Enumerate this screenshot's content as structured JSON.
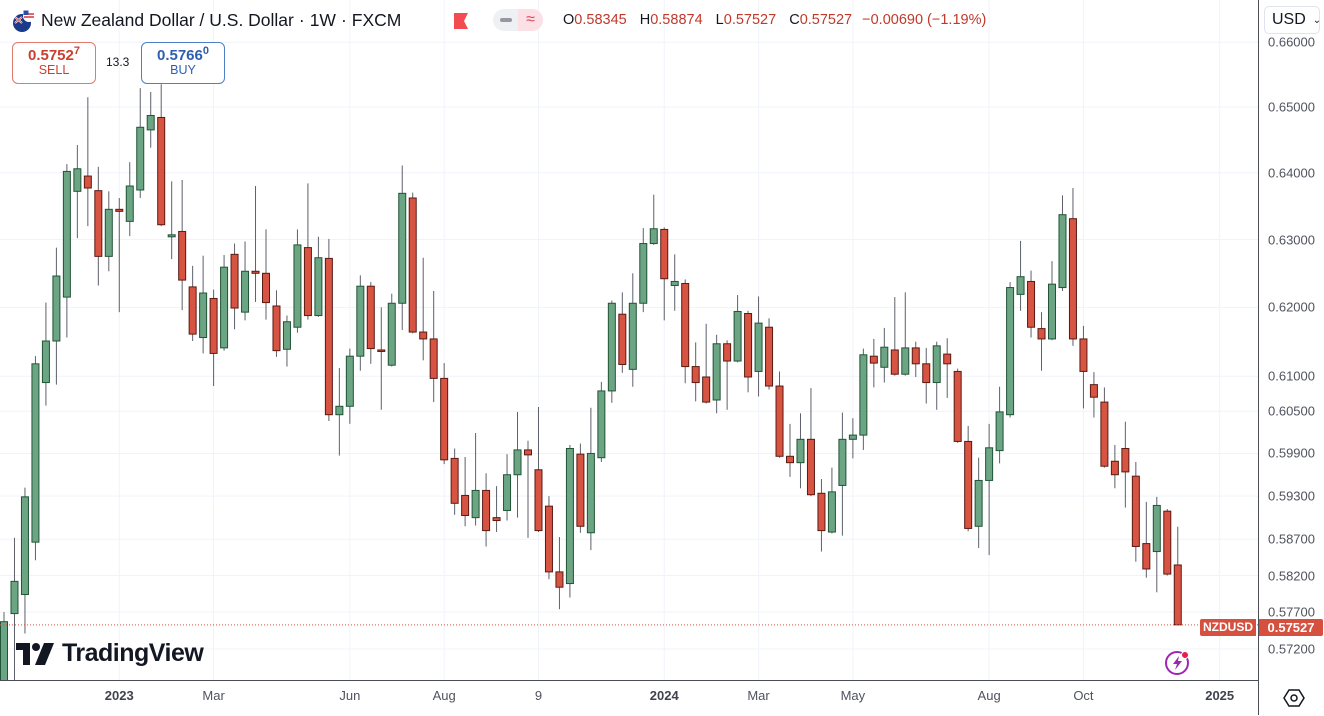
{
  "header": {
    "symbol_name": "New Zealand Dollar / U.S. Dollar",
    "interval": "1W",
    "exchange": "FXCM",
    "ohlc": {
      "o_label": "O",
      "o": "0.58345",
      "h_label": "H",
      "h": "0.58874",
      "l_label": "L",
      "l": "0.57527",
      "c_label": "C",
      "c": "0.57527",
      "change": "−0.00690 (−1.19%)"
    },
    "icons": {
      "flag": "nz-flag-icon",
      "alert": "red-flag-icon",
      "pill_left": "minus-icon",
      "pill_right": "approx-wave-icon"
    }
  },
  "trade": {
    "sell_price_main": "0.5752",
    "sell_price_pip": "7",
    "sell_label": "SELL",
    "spread": "13.3",
    "buy_price_main": "0.5766",
    "buy_price_pip": "0",
    "buy_label": "BUY"
  },
  "price_axis": {
    "currency": "USD",
    "ticks": [
      "0.66000",
      "0.65000",
      "0.64000",
      "0.63000",
      "0.62000",
      "0.61000",
      "0.60500",
      "0.59900",
      "0.59300",
      "0.58700",
      "0.58200",
      "0.57700",
      "0.57200"
    ],
    "last_symbol": "NZDUSD",
    "last_price": "0.57527"
  },
  "time_axis": {
    "ticks": [
      {
        "label": "2023",
        "year": true
      },
      {
        "label": "Mar",
        "year": false
      },
      {
        "label": "Jun",
        "year": false
      },
      {
        "label": "Aug",
        "year": false
      },
      {
        "label": "9",
        "year": false
      },
      {
        "label": "2024",
        "year": true
      },
      {
        "label": "Mar",
        "year": false
      },
      {
        "label": "May",
        "year": false
      },
      {
        "label": "Aug",
        "year": false
      },
      {
        "label": "Oct",
        "year": false
      },
      {
        "label": "2025",
        "year": true
      }
    ]
  },
  "branding": {
    "logo_text": "TradingView"
  },
  "colors": {
    "up": "#6ba583",
    "up_border": "#225437",
    "down": "#d75442",
    "down_border": "#5b1a13",
    "last_price": "#d5503f",
    "grid": "#f0f3fa"
  },
  "chart_data": {
    "type": "candlestick",
    "title": "New Zealand Dollar / U.S. Dollar · 1W · FXCM",
    "y_scale": "log",
    "ylim": [
      0.5675,
      0.664
    ],
    "grid": true,
    "columns": [
      "open",
      "high",
      "low",
      "close"
    ],
    "candles": [
      [
        0.566,
        0.577,
        0.564,
        0.5757
      ],
      [
        0.5768,
        0.5872,
        0.566,
        0.5812
      ],
      [
        0.5794,
        0.5942,
        0.5741,
        0.5929
      ],
      [
        0.5866,
        0.6129,
        0.5841,
        0.6118
      ],
      [
        0.6091,
        0.6207,
        0.6058,
        0.6151
      ],
      [
        0.6151,
        0.6288,
        0.6088,
        0.6246
      ],
      [
        0.6215,
        0.6413,
        0.6156,
        0.6402
      ],
      [
        0.6372,
        0.6442,
        0.6302,
        0.6406
      ],
      [
        0.6395,
        0.6515,
        0.632,
        0.6377
      ],
      [
        0.6373,
        0.6409,
        0.6232,
        0.6275
      ],
      [
        0.6275,
        0.6372,
        0.6253,
        0.6345
      ],
      [
        0.6345,
        0.6362,
        0.6193,
        0.6342
      ],
      [
        0.6327,
        0.6416,
        0.6305,
        0.638
      ],
      [
        0.6374,
        0.6529,
        0.6362,
        0.6469
      ],
      [
        0.6465,
        0.6523,
        0.6438,
        0.6487
      ],
      [
        0.6484,
        0.6535,
        0.632,
        0.6322
      ],
      [
        0.6304,
        0.6387,
        0.6271,
        0.6307
      ],
      [
        0.6312,
        0.6389,
        0.6196,
        0.624
      ],
      [
        0.623,
        0.6261,
        0.6151,
        0.6161
      ],
      [
        0.6156,
        0.6276,
        0.6133,
        0.6221
      ],
      [
        0.6213,
        0.6226,
        0.6086,
        0.6133
      ],
      [
        0.6141,
        0.6277,
        0.6137,
        0.6259
      ],
      [
        0.6278,
        0.6294,
        0.6168,
        0.6199
      ],
      [
        0.6193,
        0.6297,
        0.6181,
        0.6253
      ],
      [
        0.6253,
        0.638,
        0.6208,
        0.625
      ],
      [
        0.625,
        0.6315,
        0.6182,
        0.6207
      ],
      [
        0.6202,
        0.6225,
        0.6128,
        0.6137
      ],
      [
        0.6139,
        0.6188,
        0.6114,
        0.6179
      ],
      [
        0.6171,
        0.6315,
        0.6163,
        0.6292
      ],
      [
        0.6288,
        0.6384,
        0.6182,
        0.6188
      ],
      [
        0.6188,
        0.6304,
        0.6186,
        0.6273
      ],
      [
        0.6272,
        0.6301,
        0.6036,
        0.6045
      ],
      [
        0.6045,
        0.6112,
        0.5987,
        0.6057
      ],
      [
        0.6057,
        0.614,
        0.6032,
        0.6129
      ],
      [
        0.6129,
        0.6247,
        0.6108,
        0.6231
      ],
      [
        0.6231,
        0.6237,
        0.6118,
        0.614
      ],
      [
        0.6138,
        0.62,
        0.6052,
        0.6136
      ],
      [
        0.6116,
        0.622,
        0.6114,
        0.6206
      ],
      [
        0.6206,
        0.6411,
        0.6167,
        0.6369
      ],
      [
        0.6362,
        0.637,
        0.6162,
        0.6164
      ],
      [
        0.6164,
        0.6273,
        0.6123,
        0.6154
      ],
      [
        0.6154,
        0.6224,
        0.6063,
        0.6097
      ],
      [
        0.6097,
        0.6119,
        0.5975,
        0.5981
      ],
      [
        0.5983,
        0.5997,
        0.5904,
        0.592
      ],
      [
        0.5931,
        0.5985,
        0.5888,
        0.5903
      ],
      [
        0.59,
        0.6019,
        0.5889,
        0.5938
      ],
      [
        0.5938,
        0.5962,
        0.586,
        0.5882
      ],
      [
        0.59,
        0.5944,
        0.588,
        0.5896
      ],
      [
        0.591,
        0.5989,
        0.5896,
        0.596
      ],
      [
        0.596,
        0.6049,
        0.59,
        0.5995
      ],
      [
        0.5995,
        0.6008,
        0.5872,
        0.5988
      ],
      [
        0.5967,
        0.6056,
        0.588,
        0.5882
      ],
      [
        0.5916,
        0.593,
        0.5815,
        0.5825
      ],
      [
        0.5825,
        0.5873,
        0.5774,
        0.5804
      ],
      [
        0.5809,
        0.6002,
        0.579,
        0.5997
      ],
      [
        0.5989,
        0.6004,
        0.5879,
        0.5888
      ],
      [
        0.5879,
        0.6055,
        0.5855,
        0.599
      ],
      [
        0.5984,
        0.6092,
        0.5978,
        0.6079
      ],
      [
        0.6079,
        0.621,
        0.6062,
        0.6206
      ],
      [
        0.619,
        0.6222,
        0.6105,
        0.6117
      ],
      [
        0.611,
        0.625,
        0.6085,
        0.6206
      ],
      [
        0.6206,
        0.6317,
        0.6193,
        0.6294
      ],
      [
        0.6294,
        0.6367,
        0.6292,
        0.6316
      ],
      [
        0.6315,
        0.6318,
        0.6181,
        0.6242
      ],
      [
        0.6232,
        0.6278,
        0.6195,
        0.6238
      ],
      [
        0.6235,
        0.6241,
        0.609,
        0.6114
      ],
      [
        0.6114,
        0.6149,
        0.6064,
        0.6091
      ],
      [
        0.6099,
        0.6176,
        0.6061,
        0.6063
      ],
      [
        0.6066,
        0.616,
        0.6047,
        0.6147
      ],
      [
        0.6147,
        0.6152,
        0.6052,
        0.6122
      ],
      [
        0.6122,
        0.6218,
        0.612,
        0.6194
      ],
      [
        0.6191,
        0.6195,
        0.6077,
        0.6099
      ],
      [
        0.6107,
        0.6216,
        0.6071,
        0.6177
      ],
      [
        0.6171,
        0.6184,
        0.6081,
        0.6086
      ],
      [
        0.6086,
        0.6107,
        0.5984,
        0.5986
      ],
      [
        0.5986,
        0.6032,
        0.5957,
        0.5977
      ],
      [
        0.5977,
        0.6047,
        0.5941,
        0.601
      ],
      [
        0.601,
        0.6083,
        0.593,
        0.5932
      ],
      [
        0.5934,
        0.5954,
        0.5853,
        0.5882
      ],
      [
        0.588,
        0.597,
        0.5878,
        0.5936
      ],
      [
        0.5945,
        0.6048,
        0.5875,
        0.601
      ],
      [
        0.601,
        0.604,
        0.5983,
        0.6016
      ],
      [
        0.6016,
        0.614,
        0.5995,
        0.6131
      ],
      [
        0.6129,
        0.6154,
        0.6084,
        0.6119
      ],
      [
        0.6113,
        0.617,
        0.6091,
        0.6142
      ],
      [
        0.6138,
        0.6215,
        0.6101,
        0.6103
      ],
      [
        0.6103,
        0.6222,
        0.6101,
        0.6141
      ],
      [
        0.6141,
        0.615,
        0.6099,
        0.6118
      ],
      [
        0.6118,
        0.6141,
        0.6061,
        0.6091
      ],
      [
        0.6091,
        0.615,
        0.6052,
        0.6144
      ],
      [
        0.6132,
        0.6155,
        0.6069,
        0.6118
      ],
      [
        0.6107,
        0.6111,
        0.6005,
        0.6007
      ],
      [
        0.6007,
        0.6029,
        0.5881,
        0.5885
      ],
      [
        0.5888,
        0.5984,
        0.5858,
        0.5952
      ],
      [
        0.5952,
        0.6032,
        0.5848,
        0.5998
      ],
      [
        0.5994,
        0.6085,
        0.5976,
        0.6049
      ],
      [
        0.6045,
        0.6237,
        0.6041,
        0.6229
      ],
      [
        0.6219,
        0.6298,
        0.6195,
        0.6245
      ],
      [
        0.6238,
        0.6254,
        0.6156,
        0.6171
      ],
      [
        0.6169,
        0.6193,
        0.6108,
        0.6154
      ],
      [
        0.6154,
        0.6268,
        0.6152,
        0.6234
      ],
      [
        0.6229,
        0.6366,
        0.6224,
        0.6337
      ],
      [
        0.6331,
        0.6377,
        0.6144,
        0.6154
      ],
      [
        0.6154,
        0.6173,
        0.6054,
        0.6107
      ],
      [
        0.6088,
        0.6106,
        0.6041,
        0.607
      ],
      [
        0.6063,
        0.6084,
        0.597,
        0.5972
      ],
      [
        0.5979,
        0.6002,
        0.5941,
        0.596
      ],
      [
        0.5997,
        0.6035,
        0.5914,
        0.5964
      ],
      [
        0.5958,
        0.5978,
        0.5839,
        0.586
      ],
      [
        0.5864,
        0.5922,
        0.5817,
        0.5829
      ],
      [
        0.5853,
        0.5929,
        0.5797,
        0.5917
      ],
      [
        0.5909,
        0.5912,
        0.582,
        0.5822
      ],
      [
        0.58345,
        0.58874,
        0.57527,
        0.57527
      ]
    ]
  }
}
